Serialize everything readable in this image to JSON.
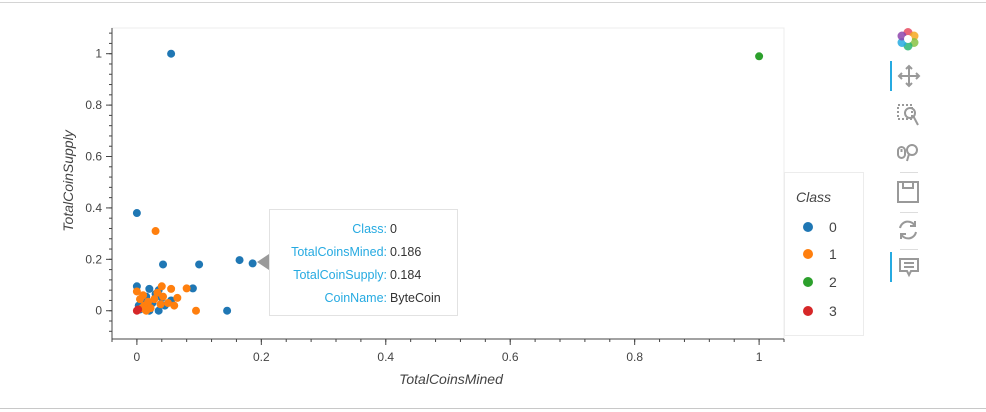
{
  "chart_data": {
    "type": "scatter",
    "xlabel": "TotalCoinsMined",
    "ylabel": "TotalCoinSupply",
    "xlim": [
      -0.04,
      1.04
    ],
    "ylim": [
      -0.11,
      1.1
    ],
    "xticks": [
      0,
      0.2,
      0.4,
      0.6,
      0.8,
      1
    ],
    "xtick_labels": [
      "0",
      "0.2",
      "0.4",
      "0.6",
      "0.8",
      "1"
    ],
    "yticks": [
      0,
      0.2,
      0.4,
      0.6,
      0.8,
      1
    ],
    "ytick_labels": [
      "0",
      "0.2",
      "0.4",
      "0.6",
      "0.8",
      "1"
    ],
    "grid": false,
    "legend_title": "Class",
    "legend_position": "right",
    "series": [
      {
        "name": "0",
        "color": "#1f77b4",
        "points": [
          [
            0.055,
            1.0
          ],
          [
            0.0,
            0.38
          ],
          [
            0.042,
            0.18
          ],
          [
            0.1,
            0.18
          ],
          [
            0.165,
            0.197
          ],
          [
            0.186,
            0.184
          ],
          [
            0.0,
            0.095
          ],
          [
            0.02,
            0.085
          ],
          [
            0.035,
            0.08
          ],
          [
            0.09,
            0.087
          ],
          [
            0.145,
            0.0
          ],
          [
            0.003,
            0.02
          ],
          [
            0.01,
            0.04
          ],
          [
            0.015,
            0.055
          ],
          [
            0.025,
            0.03
          ],
          [
            0.03,
            0.065
          ],
          [
            0.04,
            0.05
          ],
          [
            0.045,
            0.02
          ],
          [
            0.055,
            0.04
          ],
          [
            0.035,
            0.0
          ],
          [
            0.02,
            0.0
          ],
          [
            0.005,
            0.005
          ]
        ]
      },
      {
        "name": "1",
        "color": "#ff7f0e",
        "points": [
          [
            0.03,
            0.31
          ],
          [
            0.04,
            0.095
          ],
          [
            0.055,
            0.085
          ],
          [
            0.08,
            0.087
          ],
          [
            0.095,
            0.0
          ],
          [
            0.0,
            0.075
          ],
          [
            0.005,
            0.045
          ],
          [
            0.01,
            0.06
          ],
          [
            0.012,
            0.02
          ],
          [
            0.018,
            0.035
          ],
          [
            0.022,
            0.01
          ],
          [
            0.028,
            0.045
          ],
          [
            0.033,
            0.07
          ],
          [
            0.038,
            0.025
          ],
          [
            0.042,
            0.055
          ],
          [
            0.05,
            0.03
          ],
          [
            0.06,
            0.02
          ],
          [
            0.065,
            0.05
          ],
          [
            0.015,
            0.0
          ],
          [
            0.008,
            0.01
          ]
        ]
      },
      {
        "name": "2",
        "color": "#2ca02c",
        "points": [
          [
            1.0,
            0.99
          ]
        ]
      },
      {
        "name": "3",
        "color": "#d62728",
        "points": [
          [
            0.0,
            0.0
          ],
          [
            0.002,
            0.005
          ]
        ]
      }
    ]
  },
  "tooltip": {
    "rows": [
      {
        "key": "Class:",
        "value": "0"
      },
      {
        "key": "TotalCoinsMined:",
        "value": "0.186"
      },
      {
        "key": "TotalCoinSupply:",
        "value": "0.184"
      },
      {
        "key": "CoinName:",
        "value": "ByteCoin"
      }
    ]
  },
  "legend": {
    "title": "Class",
    "items": [
      {
        "label": "0",
        "color": "#1f77b4"
      },
      {
        "label": "1",
        "color": "#ff7f0e"
      },
      {
        "label": "2",
        "color": "#2ca02c"
      },
      {
        "label": "3",
        "color": "#d62728"
      }
    ]
  },
  "toolbar": {
    "tools": [
      {
        "name": "bokeh-logo-icon",
        "active": false
      },
      {
        "name": "pan-tool-icon",
        "active": true
      },
      {
        "name": "box-zoom-tool-icon",
        "active": false
      },
      {
        "name": "wheel-zoom-tool-icon",
        "active": false
      },
      {
        "name": "save-tool-icon",
        "active": false
      },
      {
        "name": "reset-tool-icon",
        "active": false
      },
      {
        "name": "hover-tool-icon",
        "active": true
      }
    ]
  }
}
